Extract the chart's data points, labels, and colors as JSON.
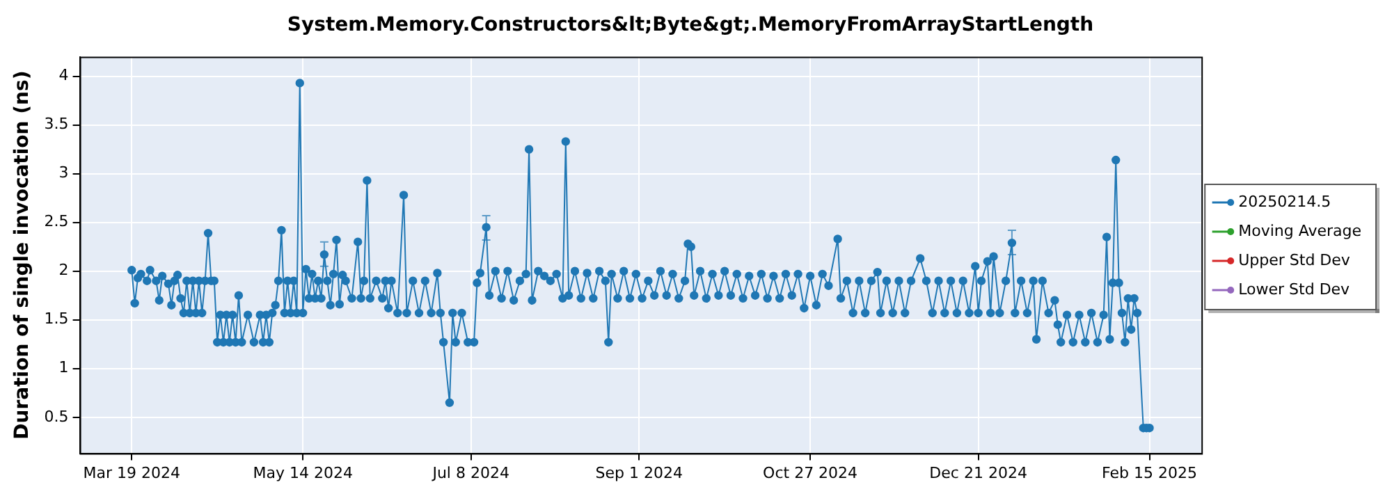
{
  "chart_data": {
    "type": "line",
    "title": "System.Memory.Constructors&lt;Byte&gt;.MemoryFromArrayStartLength",
    "ylabel": "Duration of single invocation (ns)",
    "xlim": [
      "2024-03-02",
      "2025-03-04"
    ],
    "xticks": [
      {
        "value": "2024-03-19",
        "label": "Mar 19 2024"
      },
      {
        "value": "2024-05-14",
        "label": "May 14 2024"
      },
      {
        "value": "2024-07-08",
        "label": "Jul 8 2024"
      },
      {
        "value": "2024-09-01",
        "label": "Sep 1 2024"
      },
      {
        "value": "2024-10-27",
        "label": "Oct 27 2024"
      },
      {
        "value": "2024-12-21",
        "label": "Dec 21 2024"
      },
      {
        "value": "2025-02-15",
        "label": "Feb 15 2025"
      }
    ],
    "ylim": [
      0.13,
      4.2
    ],
    "yticks": [
      0.5,
      1,
      1.5,
      2,
      2.5,
      3,
      3.5,
      4
    ],
    "grid": true,
    "legend": "right",
    "marker": "circle",
    "line_style": "solid",
    "series": [
      {
        "name": "20250214.5",
        "color": "#1f77b4",
        "x": [
          "2024-03-19",
          "2024-03-20",
          "2024-03-21",
          "2024-03-22",
          "2024-03-24",
          "2024-03-25",
          "2024-03-27",
          "2024-03-28",
          "2024-03-29",
          "2024-03-31",
          "2024-04-01",
          "2024-04-02",
          "2024-04-03",
          "2024-04-04",
          "2024-04-05",
          "2024-04-06",
          "2024-04-07",
          "2024-04-08",
          "2024-04-09",
          "2024-04-10",
          "2024-04-11",
          "2024-04-12",
          "2024-04-13",
          "2024-04-14",
          "2024-04-15",
          "2024-04-16",
          "2024-04-17",
          "2024-04-18",
          "2024-04-19",
          "2024-04-20",
          "2024-04-21",
          "2024-04-22",
          "2024-04-23",
          "2024-04-24",
          "2024-04-26",
          "2024-04-28",
          "2024-04-30",
          "2024-05-01",
          "2024-05-02",
          "2024-05-03",
          "2024-05-04",
          "2024-05-05",
          "2024-05-06",
          "2024-05-07",
          "2024-05-08",
          "2024-05-09",
          "2024-05-10",
          "2024-05-11",
          "2024-05-12",
          "2024-05-13",
          "2024-05-14",
          "2024-05-15",
          "2024-05-16",
          "2024-05-17",
          "2024-05-18",
          "2024-05-19",
          "2024-05-20",
          "2024-05-21",
          "2024-05-22",
          "2024-05-23",
          "2024-05-24",
          "2024-05-25",
          "2024-05-26",
          "2024-05-27",
          "2024-05-28",
          "2024-05-30",
          "2024-06-01",
          "2024-06-02",
          "2024-06-03",
          "2024-06-04",
          "2024-06-05",
          "2024-06-07",
          "2024-06-09",
          "2024-06-10",
          "2024-06-11",
          "2024-06-12",
          "2024-06-14",
          "2024-06-16",
          "2024-06-17",
          "2024-06-19",
          "2024-06-21",
          "2024-06-23",
          "2024-06-25",
          "2024-06-27",
          "2024-06-28",
          "2024-06-29",
          "2024-07-01",
          "2024-07-02",
          "2024-07-03",
          "2024-07-05",
          "2024-07-07",
          "2024-07-09",
          "2024-07-10",
          "2024-07-11",
          "2024-07-13",
          "2024-07-14",
          "2024-07-16",
          "2024-07-18",
          "2024-07-20",
          "2024-07-22",
          "2024-07-24",
          "2024-07-26",
          "2024-07-27",
          "2024-07-28",
          "2024-07-30",
          "2024-08-01",
          "2024-08-03",
          "2024-08-05",
          "2024-08-07",
          "2024-08-08",
          "2024-08-09",
          "2024-08-11",
          "2024-08-13",
          "2024-08-15",
          "2024-08-17",
          "2024-08-19",
          "2024-08-21",
          "2024-08-22",
          "2024-08-23",
          "2024-08-25",
          "2024-08-27",
          "2024-08-29",
          "2024-08-31",
          "2024-09-02",
          "2024-09-04",
          "2024-09-06",
          "2024-09-08",
          "2024-09-10",
          "2024-09-12",
          "2024-09-14",
          "2024-09-16",
          "2024-09-17",
          "2024-09-18",
          "2024-09-19",
          "2024-09-21",
          "2024-09-23",
          "2024-09-25",
          "2024-09-27",
          "2024-09-29",
          "2024-10-01",
          "2024-10-03",
          "2024-10-05",
          "2024-10-07",
          "2024-10-09",
          "2024-10-11",
          "2024-10-13",
          "2024-10-15",
          "2024-10-17",
          "2024-10-19",
          "2024-10-21",
          "2024-10-23",
          "2024-10-25",
          "2024-10-27",
          "2024-10-29",
          "2024-10-31",
          "2024-11-02",
          "2024-11-05",
          "2024-11-06",
          "2024-11-08",
          "2024-11-10",
          "2024-11-12",
          "2024-11-14",
          "2024-11-16",
          "2024-11-18",
          "2024-11-19",
          "2024-11-21",
          "2024-11-23",
          "2024-11-25",
          "2024-11-27",
          "2024-11-29",
          "2024-12-02",
          "2024-12-04",
          "2024-12-06",
          "2024-12-08",
          "2024-12-10",
          "2024-12-12",
          "2024-12-14",
          "2024-12-16",
          "2024-12-18",
          "2024-12-20",
          "2024-12-21",
          "2024-12-22",
          "2024-12-24",
          "2024-12-25",
          "2024-12-26",
          "2024-12-28",
          "2024-12-30",
          "2025-01-01",
          "2025-01-02",
          "2025-01-04",
          "2025-01-06",
          "2025-01-08",
          "2025-01-09",
          "2025-01-11",
          "2025-01-13",
          "2025-01-15",
          "2025-01-16",
          "2025-01-17",
          "2025-01-19",
          "2025-01-21",
          "2025-01-23",
          "2025-01-25",
          "2025-01-27",
          "2025-01-29",
          "2025-01-31",
          "2025-02-01",
          "2025-02-02",
          "2025-02-03",
          "2025-02-04",
          "2025-02-05",
          "2025-02-06",
          "2025-02-07",
          "2025-02-08",
          "2025-02-09",
          "2025-02-10",
          "2025-02-11",
          "2025-02-13",
          "2025-02-14",
          "2025-02-15"
        ],
        "values": [
          2.01,
          1.67,
          1.93,
          1.97,
          1.9,
          2.01,
          1.9,
          1.7,
          1.95,
          1.87,
          1.65,
          1.9,
          1.96,
          1.72,
          1.57,
          1.9,
          1.57,
          1.9,
          1.57,
          1.9,
          1.57,
          1.9,
          2.39,
          1.9,
          1.9,
          1.27,
          1.55,
          1.27,
          1.55,
          1.27,
          1.55,
          1.27,
          1.75,
          1.27,
          1.55,
          1.27,
          1.55,
          1.27,
          1.55,
          1.27,
          1.57,
          1.65,
          1.9,
          2.42,
          1.57,
          1.9,
          1.57,
          1.9,
          1.57,
          3.93,
          1.57,
          2.02,
          1.72,
          1.97,
          1.72,
          1.9,
          1.72,
          2.17,
          1.9,
          1.65,
          1.97,
          2.32,
          1.66,
          1.96,
          1.9,
          1.72,
          2.3,
          1.72,
          1.9,
          2.93,
          1.72,
          1.9,
          1.72,
          1.9,
          1.62,
          1.9,
          1.57,
          2.78,
          1.57,
          1.9,
          1.57,
          1.9,
          1.57,
          1.98,
          1.57,
          1.27,
          0.65,
          1.57,
          1.27,
          1.57,
          1.27,
          1.27,
          1.88,
          1.98,
          2.45,
          1.75,
          2.0,
          1.72,
          2.0,
          1.7,
          1.9,
          1.97,
          3.25,
          1.7,
          2.0,
          1.95,
          1.9,
          1.97,
          1.72,
          3.33,
          1.75,
          2.0,
          1.72,
          1.98,
          1.72,
          2.0,
          1.9,
          1.27,
          1.97,
          1.72,
          2.0,
          1.72,
          1.97,
          1.72,
          1.9,
          1.75,
          2.0,
          1.75,
          1.97,
          1.72,
          1.9,
          2.28,
          2.25,
          1.75,
          2.0,
          1.72,
          1.97,
          1.75,
          2.0,
          1.75,
          1.97,
          1.72,
          1.95,
          1.75,
          1.97,
          1.72,
          1.95,
          1.72,
          1.97,
          1.75,
          1.97,
          1.62,
          1.95,
          1.65,
          1.97,
          1.85,
          2.33,
          1.72,
          1.9,
          1.57,
          1.9,
          1.57,
          1.9,
          1.99,
          1.57,
          1.9,
          1.57,
          1.9,
          1.57,
          1.9,
          2.13,
          1.9,
          1.57,
          1.9,
          1.57,
          1.9,
          1.57,
          1.9,
          1.57,
          2.05,
          1.57,
          1.9,
          2.1,
          1.57,
          2.15,
          1.57,
          1.9,
          2.29,
          1.57,
          1.9,
          1.57,
          1.9,
          1.3,
          1.9,
          1.57,
          1.7,
          1.45,
          1.27,
          1.55,
          1.27,
          1.55,
          1.27,
          1.57,
          1.27,
          1.55,
          2.35,
          1.3,
          1.88,
          3.14,
          1.88,
          1.57,
          1.27,
          1.72,
          1.4,
          1.72,
          1.57,
          0.39,
          0.39,
          0.39
        ],
        "errors": [
          null,
          null,
          null,
          null,
          null,
          null,
          null,
          null,
          null,
          null,
          null,
          null,
          null,
          null,
          null,
          null,
          null,
          null,
          null,
          null,
          null,
          null,
          null,
          null,
          null,
          null,
          null,
          null,
          null,
          null,
          null,
          null,
          null,
          null,
          null,
          null,
          null,
          null,
          null,
          null,
          null,
          null,
          null,
          null,
          null,
          null,
          null,
          null,
          null,
          null,
          null,
          null,
          null,
          null,
          null,
          null,
          null,
          [
            2.05,
            2.3
          ],
          null,
          null,
          null,
          null,
          null,
          null,
          null,
          null,
          null,
          null,
          null,
          null,
          null,
          null,
          null,
          null,
          null,
          null,
          null,
          null,
          null,
          null,
          null,
          null,
          null,
          null,
          null,
          null,
          null,
          null,
          null,
          null,
          null,
          null,
          null,
          null,
          [
            2.32,
            2.57
          ],
          null,
          null,
          null,
          null,
          null,
          null,
          null,
          null,
          null,
          null,
          null,
          null,
          null,
          null,
          null,
          null,
          null,
          null,
          null,
          null,
          null,
          null,
          null,
          null,
          null,
          null,
          null,
          null,
          null,
          null,
          null,
          null,
          null,
          null,
          null,
          null,
          null,
          null,
          null,
          null,
          null,
          null,
          null,
          null,
          null,
          null,
          null,
          null,
          null,
          null,
          null,
          null,
          null,
          null,
          null,
          null,
          null,
          null,
          null,
          null,
          null,
          null,
          null,
          null,
          null,
          null,
          null,
          null,
          null,
          null,
          null,
          null,
          null,
          null,
          null,
          null,
          null,
          null,
          null,
          null,
          null,
          null,
          null,
          null,
          null,
          null,
          null,
          null,
          null,
          null,
          null,
          null,
          [
            2.17,
            2.42
          ],
          null,
          null,
          null,
          null,
          null,
          null,
          null,
          null,
          null,
          null,
          null,
          null,
          null,
          null,
          null,
          null,
          null,
          null,
          null,
          null,
          null,
          null,
          null,
          null,
          null,
          null,
          null,
          null,
          null,
          null,
          null
        ]
      },
      {
        "name": "Moving Average",
        "color": "#2ca02c"
      },
      {
        "name": "Upper Std Dev",
        "color": "#d62728"
      },
      {
        "name": "Lower Std Dev",
        "color": "#9467bd"
      }
    ]
  }
}
